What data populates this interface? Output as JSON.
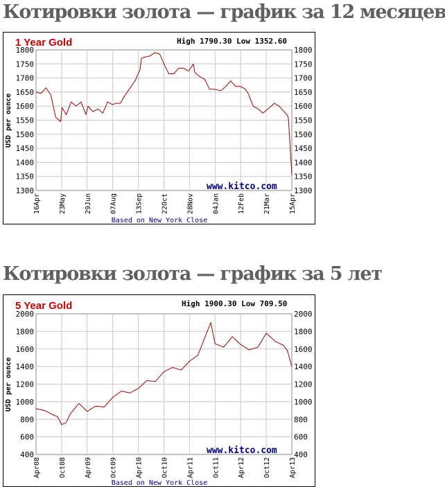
{
  "headings": {
    "year1": "Котировки золота — график за 12 месяцев",
    "year5": "Котировки золота — график за 5 лет"
  },
  "colors": {
    "series": "#a00000",
    "title": "#cc0000",
    "watermark": "#000080",
    "heading": "#606060"
  },
  "chart_data": [
    {
      "type": "line",
      "title": "1 Year Gold",
      "high_low": "High 1790.30 Low 1352.60",
      "ylabel": "USD per ounce",
      "xlabel": "",
      "watermark": "www.kitco.com",
      "footnote": "Based on New York Close",
      "ylim": [
        1300,
        1800
      ],
      "yticks": [
        1300,
        1350,
        1400,
        1450,
        1500,
        1550,
        1600,
        1650,
        1700,
        1750,
        1800
      ],
      "grid": true,
      "x_tick_labels": [
        "16Apr",
        "23May",
        "29Jun",
        "07Aug",
        "13Sep",
        "22Oct",
        "28Nov",
        "04Jan",
        "12Feb",
        "21Mar",
        "15Apr"
      ],
      "series": [
        {
          "x": [
            "16Apr",
            "23Apr",
            "30Apr",
            "07May",
            "14May",
            "21May",
            "23May",
            "29May",
            "05Jun",
            "12Jun",
            "19Jun",
            "26Jun",
            "29Jun",
            "06Jul",
            "13Jul",
            "20Jul",
            "27Jul",
            "03Aug",
            "07Aug",
            "14Aug",
            "21Aug",
            "28Aug",
            "04Sep",
            "11Sep",
            "13Sep",
            "18Sep",
            "25Sep",
            "02Oct",
            "09Oct",
            "16Oct",
            "22Oct",
            "29Oct",
            "05Nov",
            "12Nov",
            "19Nov",
            "26Nov",
            "28Nov",
            "05Dec",
            "12Dec",
            "19Dec",
            "26Dec",
            "04Jan",
            "11Jan",
            "18Jan",
            "25Jan",
            "01Feb",
            "08Feb",
            "12Feb",
            "19Feb",
            "26Feb",
            "05Mar",
            "12Mar",
            "19Mar",
            "21Mar",
            "28Mar",
            "04Apr",
            "08Apr",
            "10Apr",
            "12Apr",
            "15Apr"
          ],
          "y": [
            1650,
            1645,
            1665,
            1640,
            1560,
            1545,
            1595,
            1570,
            1615,
            1600,
            1615,
            1570,
            1600,
            1580,
            1590,
            1575,
            1615,
            1605,
            1610,
            1610,
            1640,
            1665,
            1690,
            1730,
            1770,
            1775,
            1778,
            1790,
            1785,
            1745,
            1715,
            1715,
            1735,
            1735,
            1725,
            1750,
            1720,
            1705,
            1695,
            1660,
            1660,
            1655,
            1670,
            1690,
            1670,
            1670,
            1660,
            1645,
            1600,
            1590,
            1575,
            1590,
            1605,
            1610,
            1600,
            1580,
            1570,
            1560,
            1480,
            1355
          ]
        }
      ]
    },
    {
      "type": "line",
      "title": "5 Year Gold",
      "high_low": "High 1900.30 Low 709.50",
      "ylabel": "USD per ounce",
      "xlabel": "",
      "watermark": "www.kitco.com",
      "footnote": "Based on New York Close",
      "ylim": [
        400,
        2000
      ],
      "yticks": [
        400,
        600,
        800,
        1000,
        1200,
        1400,
        1600,
        1800,
        2000
      ],
      "grid": true,
      "x_tick_labels": [
        "Apr08",
        "Oct08",
        "Apr09",
        "Oct09",
        "Apr10",
        "Oct10",
        "Apr11",
        "Oct11",
        "Apr12",
        "Oct12",
        "Apr13"
      ],
      "series": [
        {
          "x": [
            "Apr08",
            "Jun08",
            "Aug08",
            "Sep08",
            "Oct08",
            "Nov08",
            "Dec08",
            "Feb09",
            "Apr09",
            "Jun09",
            "Aug09",
            "Oct09",
            "Dec09",
            "Feb10",
            "Apr10",
            "Jun10",
            "Aug10",
            "Oct10",
            "Dec10",
            "Feb11",
            "Apr11",
            "Jun11",
            "Aug11",
            "Sep11",
            "Oct11",
            "Dec11",
            "Feb12",
            "Apr12",
            "Jun12",
            "Aug12",
            "Oct12",
            "Dec12",
            "Feb13",
            "Mar13",
            "Apr13"
          ],
          "y": [
            920,
            900,
            850,
            830,
            740,
            760,
            860,
            980,
            890,
            950,
            940,
            1050,
            1120,
            1100,
            1150,
            1240,
            1230,
            1340,
            1390,
            1360,
            1460,
            1530,
            1780,
            1900,
            1660,
            1620,
            1740,
            1650,
            1590,
            1620,
            1780,
            1690,
            1640,
            1580,
            1400
          ]
        }
      ]
    }
  ]
}
